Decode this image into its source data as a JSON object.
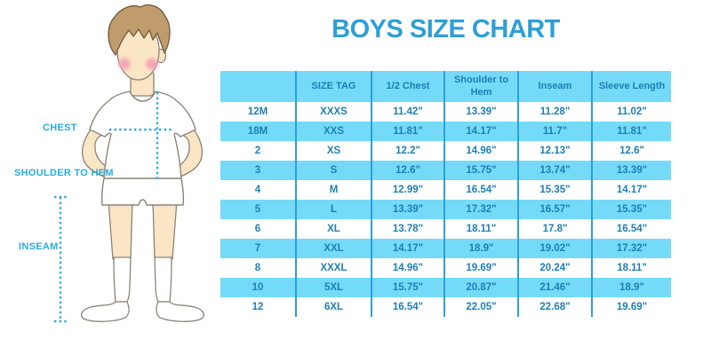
{
  "title": "BOYS SIZE CHART",
  "figure": {
    "labels": {
      "chest": "CHEST",
      "shoulder_to_hem": "SHOULDER TO HEM",
      "inseam": "INSEAM"
    }
  },
  "table": {
    "headers": [
      "",
      "SIZE TAG",
      "1/2 Chest",
      "Shoulder to Hem",
      "Inseam",
      "Sleeve Length"
    ],
    "rows": [
      [
        "12M",
        "XXXS",
        "11.42\"",
        "13.39\"",
        "11.28\"",
        "11.02\""
      ],
      [
        "18M",
        "XXS",
        "11.81\"",
        "14.17\"",
        "11.7\"",
        "11.81\""
      ],
      [
        "2",
        "XS",
        "12.2\"",
        "14.96\"",
        "12.13\"",
        "12.6\""
      ],
      [
        "3",
        "S",
        "12.6\"",
        "15.75\"",
        "13.74\"",
        "13.39\""
      ],
      [
        "4",
        "M",
        "12.99\"",
        "16.54\"",
        "15.35\"",
        "14.17\""
      ],
      [
        "5",
        "L",
        "13.39\"",
        "17.32\"",
        "16.57\"",
        "15.35\""
      ],
      [
        "6",
        "XL",
        "13.78\"",
        "18.11\"",
        "17.8\"",
        "16.54\""
      ],
      [
        "7",
        "XXL",
        "14.17\"",
        "18.9\"",
        "19.02\"",
        "17.32\""
      ],
      [
        "8",
        "XXXL",
        "14.96\"",
        "19.69\"",
        "20.24\"",
        "18.11\""
      ],
      [
        "10",
        "5XL",
        "15.75\"",
        "20.87\"",
        "21.46\"",
        "18.9\""
      ],
      [
        "12",
        "6XL",
        "16.54\"",
        "22.05\"",
        "22.68\"",
        "19.69\""
      ]
    ]
  },
  "colors": {
    "row_band": "#74DAF7",
    "divider": "#2EA0D6",
    "cell_text": "#1E7FB6",
    "title": "#2E9FD6",
    "accent": "#29ABE2"
  }
}
